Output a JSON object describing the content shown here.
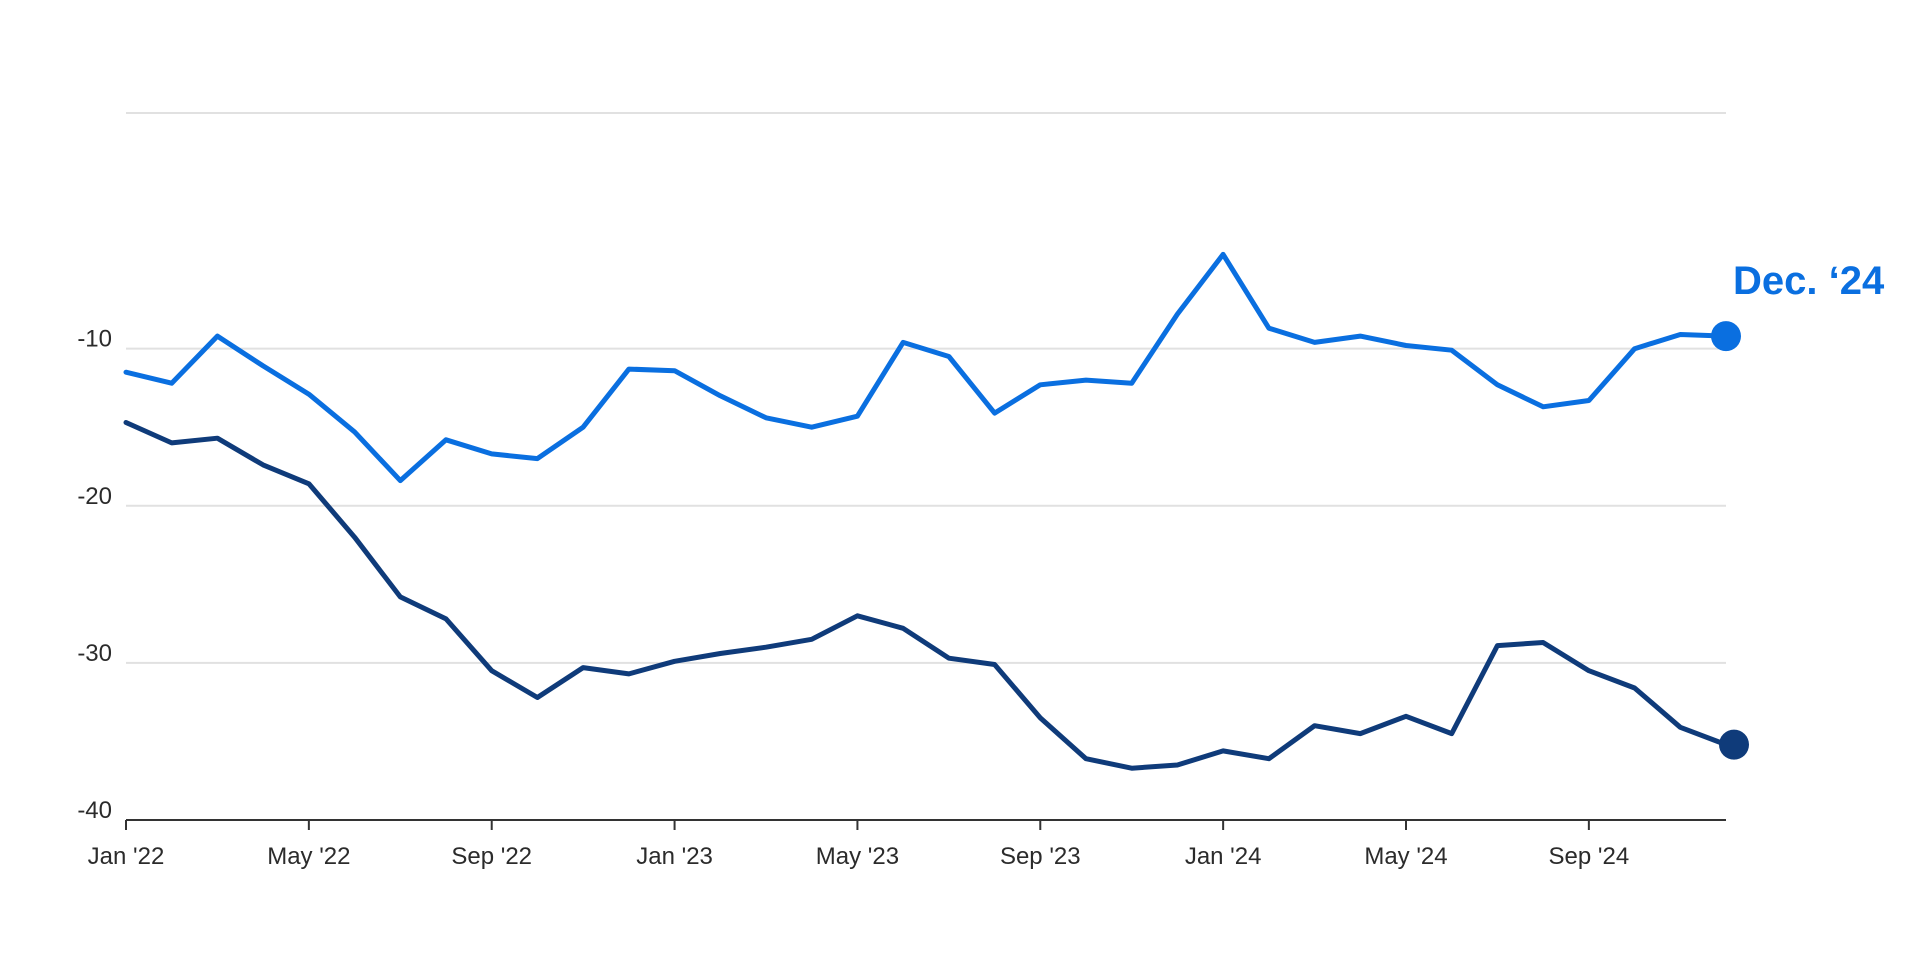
{
  "colors": {
    "series_light": "#0A6FE0",
    "series_dark": "#0F3B7A",
    "grid": "#E1E1E1",
    "axis": "#333333",
    "text": "#2B2B2B"
  },
  "chart_data": {
    "type": "line",
    "title": "",
    "xlabel": "",
    "ylabel": "",
    "x": [
      "Jan '22",
      "Feb '22",
      "Mar '22",
      "Apr '22",
      "May '22",
      "Jun '22",
      "Jul '22",
      "Aug '22",
      "Sep '22",
      "Oct '22",
      "Nov '22",
      "Dec '22",
      "Jan '23",
      "Feb '23",
      "Mar '23",
      "Apr '23",
      "May '23",
      "Jun '23",
      "Jul '23",
      "Aug '23",
      "Sep '23",
      "Oct '23",
      "Nov '23",
      "Dec '23",
      "Jan '24",
      "Feb '24",
      "Mar '24",
      "Apr '24",
      "May '24",
      "Jun '24",
      "Jul '24",
      "Aug '24",
      "Sep '24",
      "Oct '24",
      "Nov '24",
      "Dec '24"
    ],
    "x_tick_labels": [
      "Jan '22",
      "May '22",
      "Sep '22",
      "Jan '23",
      "May '23",
      "Sep '23",
      "Jan '24",
      "May '24",
      "Sep '24"
    ],
    "x_tick_months": [
      "Jan '22",
      "May '22",
      "Sep '22",
      "Jan '23",
      "May '23",
      "Sep '23",
      "Jan '24",
      "May '24",
      "Sep '24"
    ],
    "y_ticks": [
      -10,
      -20,
      -30,
      -40
    ],
    "y_tick_labels": [
      "-10",
      "-20",
      "-30",
      "-40"
    ],
    "ylim": [
      -40,
      5
    ],
    "grid": true,
    "legend": "none",
    "series": [
      {
        "values": [
          -11.5,
          -12.2,
          -9.2,
          -11.1,
          -12.9,
          -15.3,
          -18.4,
          -15.8,
          -16.7,
          -17.0,
          -15.0,
          -11.3,
          -11.4,
          -13.0,
          -14.4,
          -15.0,
          -14.3,
          -9.6,
          -10.5,
          -14.1,
          -12.3,
          -12.0,
          -12.2,
          -7.8,
          -4.0,
          -8.7,
          -9.6,
          -9.2,
          -9.8,
          -10.1,
          -12.3,
          -13.7,
          -13.3,
          -10.0,
          -9.1,
          -9.2
        ],
        "end_label": "Dec. ‘24"
      },
      {
        "values": [
          -14.7,
          -16.0,
          -15.7,
          -17.4,
          -18.6,
          -22.0,
          -25.8,
          -27.2,
          -30.5,
          -32.2,
          -30.3,
          -30.7,
          -29.9,
          -29.4,
          -29.0,
          -28.5,
          -27.0,
          -27.8,
          -29.7,
          -30.1,
          -33.5,
          -36.1,
          -36.7,
          -36.5,
          -35.6,
          -36.1,
          -34.0,
          -34.5,
          -33.4,
          -34.5,
          -28.9,
          -28.7,
          -30.5,
          -31.6,
          -34.1,
          -35.2
        ]
      }
    ]
  }
}
